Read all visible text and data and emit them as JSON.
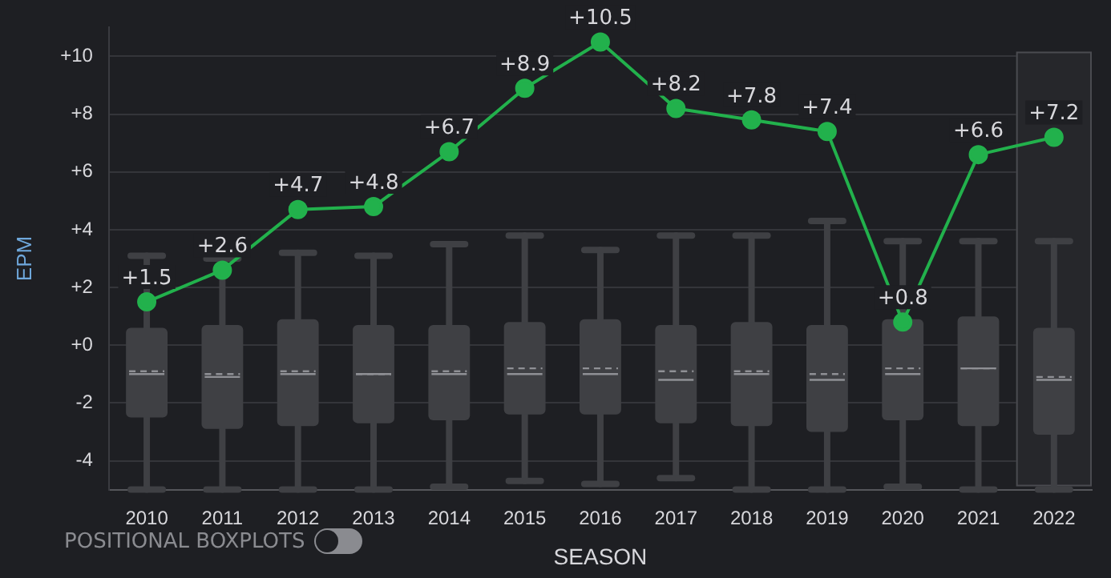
{
  "chart_data": {
    "type": "box",
    "xlabel": "SEASON",
    "ylabel": "EPM",
    "categories": [
      "2010",
      "2011",
      "2012",
      "2013",
      "2014",
      "2015",
      "2016",
      "2017",
      "2018",
      "2019",
      "2020",
      "2021",
      "2022"
    ],
    "ylim": [
      -5,
      11
    ],
    "yticks": [
      {
        "value": -4,
        "label": "-4"
      },
      {
        "value": -2,
        "label": "-2"
      },
      {
        "value": 0,
        "label": "+0"
      },
      {
        "value": 2,
        "label": "+2"
      },
      {
        "value": 4,
        "label": "+4"
      },
      {
        "value": 6,
        "label": "+6"
      },
      {
        "value": 8,
        "label": "+8"
      },
      {
        "value": 10,
        "label": "+10"
      }
    ],
    "grid": "y",
    "legend": false,
    "bands": [
      {
        "axis": "x",
        "from": "2022",
        "to": "2022",
        "color": "#26272b"
      }
    ],
    "annotations": [
      "POSITIONAL BOXPLOTS"
    ],
    "series": [
      {
        "type": "box",
        "color": "#3f4044",
        "boxes": [
          {
            "low": -5,
            "q1": -2.5,
            "median": -1.0,
            "q3": 0.6,
            "high": 3.1,
            "mean": -0.9
          },
          {
            "low": -5,
            "q1": -2.9,
            "median": -1.1,
            "q3": 0.7,
            "high": 3.0,
            "mean": -1.0
          },
          {
            "low": -5,
            "q1": -2.8,
            "median": -1.0,
            "q3": 0.9,
            "high": 3.2,
            "mean": -0.9
          },
          {
            "low": -5,
            "q1": -2.7,
            "median": -1.0,
            "q3": 0.7,
            "high": 3.1,
            "mean": -1.0
          },
          {
            "low": -4.9,
            "q1": -2.6,
            "median": -1.0,
            "q3": 0.7,
            "high": 3.5,
            "mean": -0.9
          },
          {
            "low": -4.7,
            "q1": -2.4,
            "median": -1.0,
            "q3": 0.8,
            "high": 3.8,
            "mean": -0.8
          },
          {
            "low": -4.8,
            "q1": -2.4,
            "median": -1.0,
            "q3": 0.9,
            "high": 3.3,
            "mean": -0.8
          },
          {
            "low": -4.6,
            "q1": -2.7,
            "median": -1.2,
            "q3": 0.7,
            "high": 3.8,
            "mean": -0.9
          },
          {
            "low": -5,
            "q1": -2.8,
            "median": -1.0,
            "q3": 0.8,
            "high": 3.8,
            "mean": -0.9
          },
          {
            "low": -5,
            "q1": -3.0,
            "median": -1.2,
            "q3": 0.7,
            "high": 4.3,
            "mean": -1.0
          },
          {
            "low": -4.9,
            "q1": -2.6,
            "median": -1.0,
            "q3": 0.9,
            "high": 3.6,
            "mean": -0.8
          },
          {
            "low": -5,
            "q1": -2.8,
            "median": -0.8,
            "q3": 1.0,
            "high": 3.6,
            "mean": -0.8
          },
          {
            "low": -5,
            "q1": -3.1,
            "median": -1.2,
            "q3": 0.6,
            "high": 3.6,
            "mean": -1.1
          }
        ]
      },
      {
        "type": "line",
        "color": "#22b14c",
        "marker": "circle",
        "values": [
          1.5,
          2.6,
          4.7,
          4.8,
          6.7,
          8.9,
          10.5,
          8.2,
          7.8,
          7.4,
          0.8,
          6.6,
          7.2
        ],
        "value_labels": [
          "+1.5",
          "+2.6",
          "+4.7",
          "+4.8",
          "+6.7",
          "+8.9",
          "+10.5",
          "+8.2",
          "+7.8",
          "+7.4",
          "+0.8",
          "+6.6",
          "+7.2"
        ]
      }
    ]
  }
}
